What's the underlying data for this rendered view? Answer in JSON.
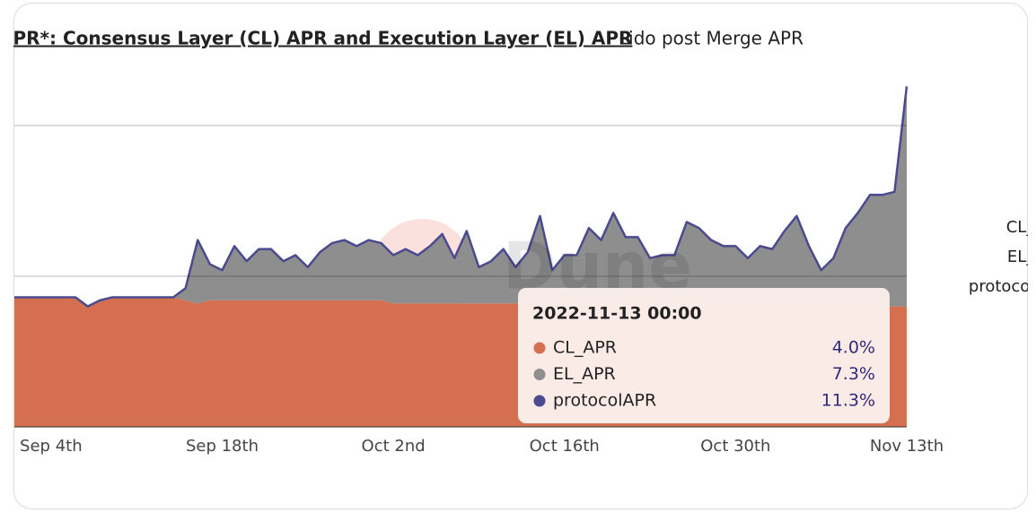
{
  "chart_data": {
    "type": "stacked-area",
    "title": "APR*: Consensus Layer (CL) APR and Execution Layer (EL) APR",
    "subtitle": "Lido post Merge APR",
    "watermark": "Dune",
    "x": [
      "2022-09-01",
      "2022-09-02",
      "2022-09-03",
      "2022-09-04",
      "2022-09-05",
      "2022-09-06",
      "2022-09-07",
      "2022-09-08",
      "2022-09-09",
      "2022-09-10",
      "2022-09-11",
      "2022-09-12",
      "2022-09-13",
      "2022-09-14",
      "2022-09-15",
      "2022-09-16",
      "2022-09-17",
      "2022-09-18",
      "2022-09-19",
      "2022-09-20",
      "2022-09-21",
      "2022-09-22",
      "2022-09-23",
      "2022-09-24",
      "2022-09-25",
      "2022-09-26",
      "2022-09-27",
      "2022-09-28",
      "2022-09-29",
      "2022-09-30",
      "2022-10-01",
      "2022-10-02",
      "2022-10-03",
      "2022-10-04",
      "2022-10-05",
      "2022-10-06",
      "2022-10-07",
      "2022-10-08",
      "2022-10-09",
      "2022-10-10",
      "2022-10-11",
      "2022-10-12",
      "2022-10-13",
      "2022-10-14",
      "2022-10-15",
      "2022-10-16",
      "2022-10-17",
      "2022-10-18",
      "2022-10-19",
      "2022-10-20",
      "2022-10-21",
      "2022-10-22",
      "2022-10-23",
      "2022-10-24",
      "2022-10-25",
      "2022-10-26",
      "2022-10-27",
      "2022-10-28",
      "2022-10-29",
      "2022-10-30",
      "2022-10-31",
      "2022-11-01",
      "2022-11-02",
      "2022-11-03",
      "2022-11-04",
      "2022-11-05",
      "2022-11-06",
      "2022-11-07",
      "2022-11-08",
      "2022-11-09",
      "2022-11-10",
      "2022-11-11",
      "2022-11-12",
      "2022-11-13"
    ],
    "xlim": [
      "2022-09-01",
      "2022-11-13"
    ],
    "xticks": [
      {
        "value": "2022-09-04",
        "label": "Sep 4th"
      },
      {
        "value": "2022-09-18",
        "label": "Sep 18th"
      },
      {
        "value": "2022-10-02",
        "label": "Oct 2nd"
      },
      {
        "value": "2022-10-16",
        "label": "Oct 16th"
      },
      {
        "value": "2022-10-30",
        "label": "Oct 30th"
      },
      {
        "value": "2022-11-13",
        "label": "Nov 13th"
      }
    ],
    "ylim": [
      0,
      12.5
    ],
    "yticks": [
      0,
      5,
      10
    ],
    "grid": true,
    "legend": "right",
    "series": [
      {
        "name": "CL_APR",
        "color": "#d4704f",
        "stack": "area",
        "values": [
          4.3,
          4.3,
          4.3,
          4.3,
          4.3,
          4.3,
          4.0,
          4.2,
          4.3,
          4.3,
          4.3,
          4.3,
          4.3,
          4.3,
          4.2,
          4.1,
          4.2,
          4.2,
          4.2,
          4.2,
          4.2,
          4.2,
          4.2,
          4.2,
          4.2,
          4.2,
          4.2,
          4.2,
          4.2,
          4.2,
          4.2,
          4.1,
          4.1,
          4.1,
          4.1,
          4.1,
          4.1,
          4.1,
          4.1,
          4.1,
          4.1,
          4.1,
          4.1,
          4.1,
          4.1,
          4.1,
          4.1,
          4.1,
          4.1,
          4.1,
          4.1,
          4.0,
          4.0,
          4.0,
          4.0,
          4.0,
          4.0,
          4.0,
          4.0,
          4.0,
          4.0,
          4.0,
          4.0,
          4.0,
          4.0,
          4.0,
          4.0,
          4.0,
          4.0,
          4.0,
          4.0,
          4.0,
          4.0,
          4.0
        ]
      },
      {
        "name": "EL_APR",
        "color": "#8e8e8e",
        "stack": "area",
        "values": [
          0,
          0,
          0,
          0,
          0,
          0,
          0,
          0,
          0,
          0,
          0,
          0,
          0,
          0,
          0.4,
          2.1,
          1.2,
          1.0,
          1.8,
          1.3,
          1.7,
          1.7,
          1.3,
          1.5,
          1.1,
          1.6,
          1.9,
          2.0,
          1.8,
          2.0,
          1.9,
          1.6,
          1.8,
          1.6,
          1.9,
          2.3,
          1.5,
          2.4,
          1.2,
          1.4,
          1.8,
          1.2,
          1.7,
          2.9,
          1.1,
          1.6,
          1.6,
          2.5,
          2.1,
          3.0,
          2.2,
          2.3,
          1.6,
          1.7,
          1.7,
          2.8,
          2.6,
          2.2,
          2.0,
          2.0,
          1.6,
          2.0,
          1.9,
          2.5,
          3.0,
          2.0,
          1.2,
          1.6,
          2.6,
          3.1,
          3.7,
          3.7,
          3.8,
          7.3
        ]
      },
      {
        "name": "protocolAPR",
        "color": "#4b4a8f",
        "stack": "line",
        "values": [
          4.3,
          4.3,
          4.3,
          4.3,
          4.3,
          4.3,
          4.0,
          4.2,
          4.3,
          4.3,
          4.3,
          4.3,
          4.3,
          4.3,
          4.6,
          6.2,
          5.4,
          5.2,
          6.0,
          5.5,
          5.9,
          5.9,
          5.5,
          5.7,
          5.3,
          5.8,
          6.1,
          6.2,
          6.0,
          6.2,
          6.1,
          5.7,
          5.9,
          5.7,
          6.0,
          6.4,
          5.6,
          6.5,
          5.3,
          5.5,
          5.9,
          5.3,
          5.8,
          7.0,
          5.2,
          5.7,
          5.7,
          6.6,
          6.2,
          7.1,
          6.3,
          6.3,
          5.6,
          5.7,
          5.7,
          6.8,
          6.6,
          6.2,
          6.0,
          6.0,
          5.6,
          6.0,
          5.9,
          6.5,
          7.0,
          6.0,
          5.2,
          5.6,
          6.6,
          7.1,
          7.7,
          7.7,
          7.8,
          11.3
        ]
      }
    ],
    "tooltip": {
      "title": "2022-11-13 00:00",
      "labels": [
        "4.0%",
        "7.3%",
        "11.3%"
      ]
    }
  }
}
